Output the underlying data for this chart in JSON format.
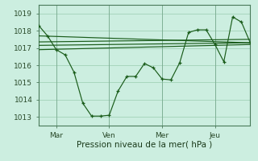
{
  "xlabel": "Pression niveau de la mer( hPa )",
  "ylim": [
    1012.5,
    1019.5
  ],
  "xlim": [
    0,
    96
  ],
  "yticks": [
    1013,
    1014,
    1015,
    1016,
    1017,
    1018,
    1019
  ],
  "xtick_positions": [
    8,
    32,
    56,
    80
  ],
  "xtick_labels": [
    "Mar",
    "Ven",
    "Mer",
    "Jeu"
  ],
  "bg_color": "#cceee0",
  "line_color": "#1a5c1a",
  "grid_color": "#99ccb0",
  "series1_x": [
    0,
    4,
    8,
    12,
    16,
    20,
    24,
    28,
    32,
    36,
    40,
    44,
    48,
    52,
    56,
    60,
    64,
    68,
    72,
    76,
    80,
    84,
    88,
    92,
    96
  ],
  "series1_y": [
    1018.3,
    1017.7,
    1016.9,
    1016.6,
    1015.6,
    1013.8,
    1013.05,
    1013.05,
    1013.1,
    1014.5,
    1015.35,
    1015.35,
    1016.1,
    1015.85,
    1015.2,
    1015.15,
    1016.15,
    1017.9,
    1018.05,
    1018.05,
    1017.2,
    1016.2,
    1018.8,
    1018.5,
    1017.3
  ],
  "series2_x": [
    0,
    96
  ],
  "series2_y": [
    1016.9,
    1017.2
  ],
  "series3_x": [
    0,
    96
  ],
  "series3_y": [
    1017.15,
    1017.3
  ],
  "series4_x": [
    0,
    96
  ],
  "series4_y": [
    1017.35,
    1017.5
  ],
  "series5_x": [
    0,
    96
  ],
  "series5_y": [
    1017.7,
    1017.3
  ]
}
